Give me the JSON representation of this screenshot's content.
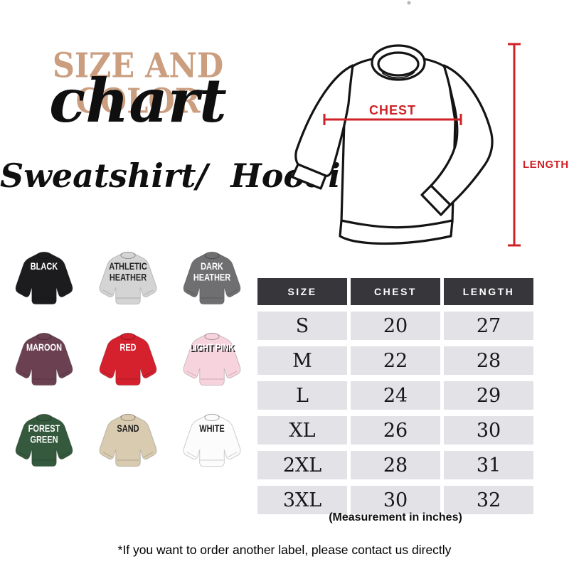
{
  "header": {
    "title_top": "SIZE AND COLOR",
    "title_script": "chart",
    "subtitle": "Sweatshirt/  Hoodie",
    "title_color": "#cb9e80"
  },
  "diagram": {
    "chest_label": "CHEST",
    "length_label": "LENGTH",
    "accent_color": "#cf2127"
  },
  "swatches": [
    {
      "label": "BLACK",
      "color": "#1c1c1e",
      "text_color": "#ffffff"
    },
    {
      "label": "ATHLETIC HEATHER",
      "color": "#d4d4d4",
      "text_color": "#262626"
    },
    {
      "label": "DARK HEATHER",
      "color": "#6f6f72",
      "text_color": "#ffffff"
    },
    {
      "label": "MAROON",
      "color": "#6b4152",
      "text_color": "#ffffff"
    },
    {
      "label": "RED",
      "color": "#d5202e",
      "text_color": "#ffffff"
    },
    {
      "label": "LIGHT PINK",
      "color": "#f7d3de",
      "text_color": "#ffffff",
      "text_shadow": true
    },
    {
      "label": "FOREST GREEN",
      "color": "#35593d",
      "text_color": "#ffffff"
    },
    {
      "label": "SAND",
      "color": "#d9cbb0",
      "text_color": "#1d1d1d"
    },
    {
      "label": "WHITE",
      "color": "#fcfcfc",
      "text_color": "#1d1d1d"
    }
  ],
  "size_table": {
    "headers": [
      "SIZE",
      "CHEST",
      "LENGTH"
    ],
    "rows": [
      [
        "S",
        "20",
        "27"
      ],
      [
        "M",
        "22",
        "28"
      ],
      [
        "L",
        "24",
        "29"
      ],
      [
        "XL",
        "26",
        "30"
      ],
      [
        "2XL",
        "28",
        "31"
      ],
      [
        "3XL",
        "30",
        "32"
      ]
    ],
    "caption": "(Measurement in inches)",
    "header_bg": "#37373b",
    "row_bg": "#e3e3e7"
  },
  "footnote": "*If you want to order another label, please contact us directly",
  "chart_data": {
    "type": "table",
    "title": "Sweatshirt / Hoodie size and color chart",
    "columns": [
      "SIZE",
      "CHEST",
      "LENGTH"
    ],
    "rows": [
      [
        "S",
        20,
        27
      ],
      [
        "M",
        22,
        28
      ],
      [
        "L",
        24,
        29
      ],
      [
        "XL",
        26,
        30
      ],
      [
        "2XL",
        28,
        31
      ],
      [
        "3XL",
        30,
        32
      ]
    ],
    "units": "inches",
    "color_options": [
      "BLACK",
      "ATHLETIC HEATHER",
      "DARK HEATHER",
      "MAROON",
      "RED",
      "LIGHT PINK",
      "FOREST GREEN",
      "SAND",
      "WHITE"
    ]
  }
}
